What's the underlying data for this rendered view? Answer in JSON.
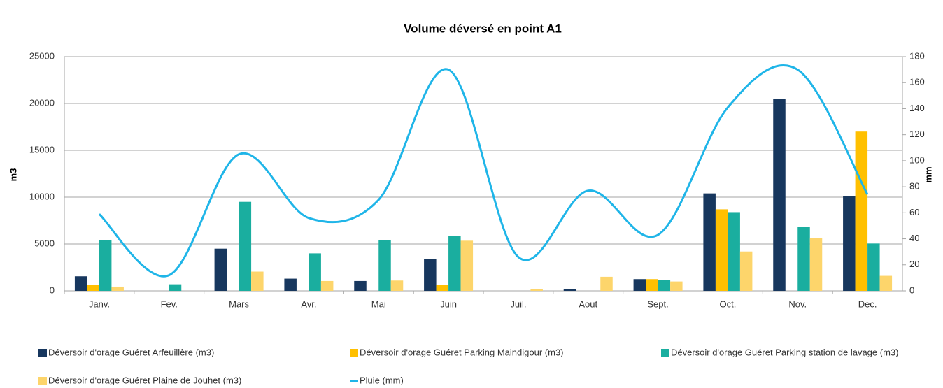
{
  "chart_data": {
    "type": "bar",
    "title": "Volume déversé en point A1",
    "y_label": "m3",
    "y2_label": "mm",
    "categories": [
      "Janv.",
      "Fev.",
      "Mars",
      "Avr.",
      "Mai",
      "Juin",
      "Juil.",
      "Aout",
      "Sept.",
      "Oct.",
      "Nov.",
      "Dec."
    ],
    "series": [
      {
        "name": "Déversoir d'orage Guéret Arfeuillère (m3)",
        "color": "#17375e",
        "values": [
          1550,
          0,
          4500,
          1300,
          1050,
          3400,
          0,
          200,
          1250,
          10400,
          20500,
          10100
        ]
      },
      {
        "name": "Déversoir d'orage Guéret Parking Maindigour (m3)",
        "color": "#ffc000",
        "values": [
          600,
          0,
          0,
          0,
          0,
          650,
          0,
          0,
          1250,
          8700,
          0,
          17000
        ]
      },
      {
        "name": "Déversoir d'orage Guéret Parking station de lavage (m3)",
        "color": "#1aae9f",
        "values": [
          5400,
          700,
          9500,
          4000,
          5400,
          5850,
          0,
          0,
          1150,
          8400,
          6850,
          5050
        ]
      },
      {
        "name": "Déversoir d'orage Guéret Plaine de Jouhet (m3)",
        "color": "#fdd56b",
        "values": [
          450,
          0,
          2050,
          1050,
          1100,
          5350,
          150,
          1500,
          1000,
          4200,
          5600,
          1600
        ]
      },
      {
        "name": "Pluie (mm)",
        "color": "#1fb5e8",
        "type": "line",
        "axis": "y2",
        "values": [
          59,
          12,
          105,
          56,
          70,
          170,
          26,
          77,
          43,
          141,
          170,
          74
        ]
      }
    ],
    "ylim": [
      0,
      25000
    ],
    "yticks": [
      0,
      5000,
      10000,
      15000,
      20000,
      25000
    ],
    "y2lim": [
      0,
      180
    ],
    "y2ticks": [
      0,
      20,
      40,
      60,
      80,
      100,
      120,
      140,
      160,
      180
    ],
    "grid": true,
    "legend": "bottom"
  }
}
